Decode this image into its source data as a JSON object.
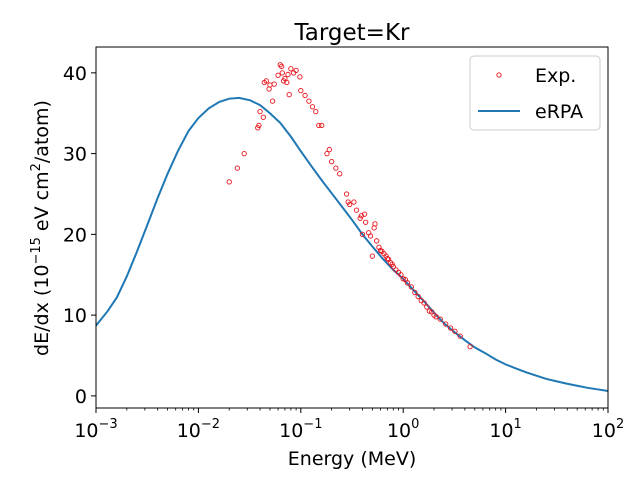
{
  "chart_data": {
    "type": "scatter",
    "title": "Target=Kr",
    "xlabel": "Energy (MeV)",
    "ylabel": {
      "prefix": "dE/dx (10",
      "exp1": "−15",
      "mid": " eV cm",
      "exp2": "2",
      "suffix": "/atom)"
    },
    "xscale": "log",
    "xlim": [
      0.001,
      100
    ],
    "ylim": [
      -1.5,
      43.2
    ],
    "x_ticks": [
      {
        "value": 0.001,
        "base": "10",
        "exp": "−3"
      },
      {
        "value": 0.01,
        "base": "10",
        "exp": "−2"
      },
      {
        "value": 0.1,
        "base": "10",
        "exp": "−1"
      },
      {
        "value": 1,
        "base": "10",
        "exp": "0"
      },
      {
        "value": 10,
        "base": "10",
        "exp": "1"
      },
      {
        "value": 100,
        "base": "10",
        "exp": "2"
      }
    ],
    "y_ticks": [
      0,
      10,
      20,
      30,
      40
    ],
    "legend_position": "top-right",
    "colors": {
      "exp": "#e8141c",
      "erpa": "#1f77b4"
    },
    "series": [
      {
        "name": "Exp.",
        "kind": "scatter",
        "points": [
          [
            0.02,
            26.5
          ],
          [
            0.024,
            28.2
          ],
          [
            0.028,
            30.0
          ],
          [
            0.038,
            33.2
          ],
          [
            0.039,
            33.5
          ],
          [
            0.04,
            35.2
          ],
          [
            0.043,
            34.5
          ],
          [
            0.044,
            38.8
          ],
          [
            0.046,
            39.0
          ],
          [
            0.049,
            38.0
          ],
          [
            0.05,
            38.5
          ],
          [
            0.053,
            36.5
          ],
          [
            0.055,
            38.6
          ],
          [
            0.06,
            39.7
          ],
          [
            0.063,
            41.0
          ],
          [
            0.065,
            40.8
          ],
          [
            0.066,
            40.0
          ],
          [
            0.068,
            39.0
          ],
          [
            0.07,
            39.3
          ],
          [
            0.073,
            38.8
          ],
          [
            0.075,
            39.8
          ],
          [
            0.077,
            37.3
          ],
          [
            0.08,
            40.5
          ],
          [
            0.085,
            40.0
          ],
          [
            0.09,
            40.3
          ],
          [
            0.098,
            39.5
          ],
          [
            0.1,
            37.8
          ],
          [
            0.11,
            37.2
          ],
          [
            0.12,
            36.5
          ],
          [
            0.13,
            35.8
          ],
          [
            0.14,
            35.2
          ],
          [
            0.15,
            33.5
          ],
          [
            0.16,
            33.5
          ],
          [
            0.18,
            30.0
          ],
          [
            0.19,
            30.5
          ],
          [
            0.2,
            29.0
          ],
          [
            0.22,
            28.2
          ],
          [
            0.24,
            27.5
          ],
          [
            0.28,
            25.0
          ],
          [
            0.29,
            24.0
          ],
          [
            0.3,
            23.7
          ],
          [
            0.33,
            24.0
          ],
          [
            0.35,
            23.0
          ],
          [
            0.38,
            22.0
          ],
          [
            0.39,
            22.3
          ],
          [
            0.4,
            20.0
          ],
          [
            0.42,
            22.5
          ],
          [
            0.43,
            21.5
          ],
          [
            0.46,
            20.2
          ],
          [
            0.48,
            19.8
          ],
          [
            0.5,
            17.3
          ],
          [
            0.52,
            20.8
          ],
          [
            0.53,
            21.3
          ],
          [
            0.55,
            19.2
          ],
          [
            0.58,
            18.4
          ],
          [
            0.6,
            18.0
          ],
          [
            0.62,
            17.9
          ],
          [
            0.65,
            17.6
          ],
          [
            0.68,
            17.3
          ],
          [
            0.7,
            17.0
          ],
          [
            0.72,
            16.9
          ],
          [
            0.75,
            16.5
          ],
          [
            0.78,
            16.3
          ],
          [
            0.8,
            16.0
          ],
          [
            0.85,
            15.6
          ],
          [
            0.9,
            15.3
          ],
          [
            0.95,
            15.0
          ],
          [
            1.0,
            14.5
          ],
          [
            1.05,
            14.4
          ],
          [
            1.1,
            14.0
          ],
          [
            1.2,
            13.5
          ],
          [
            1.3,
            12.8
          ],
          [
            1.4,
            12.3
          ],
          [
            1.5,
            11.8
          ],
          [
            1.6,
            11.5
          ],
          [
            1.7,
            11.0
          ],
          [
            1.8,
            10.5
          ],
          [
            1.9,
            10.4
          ],
          [
            2.0,
            10.0
          ],
          [
            2.1,
            9.8
          ],
          [
            2.3,
            9.5
          ],
          [
            2.6,
            8.9
          ],
          [
            2.9,
            8.4
          ],
          [
            3.2,
            8.0
          ],
          [
            3.6,
            7.4
          ],
          [
            4.5,
            6.1
          ]
        ]
      },
      {
        "name": "eRPA",
        "kind": "line",
        "points": [
          [
            0.001,
            8.7
          ],
          [
            0.0013,
            10.5
          ],
          [
            0.0016,
            12.2
          ],
          [
            0.002,
            14.8
          ],
          [
            0.0025,
            17.8
          ],
          [
            0.0032,
            21.3
          ],
          [
            0.004,
            24.5
          ],
          [
            0.005,
            27.5
          ],
          [
            0.0063,
            30.3
          ],
          [
            0.008,
            32.8
          ],
          [
            0.01,
            34.4
          ],
          [
            0.0126,
            35.6
          ],
          [
            0.016,
            36.4
          ],
          [
            0.02,
            36.8
          ],
          [
            0.025,
            36.9
          ],
          [
            0.032,
            36.6
          ],
          [
            0.04,
            36.0
          ],
          [
            0.05,
            35.0
          ],
          [
            0.063,
            33.8
          ],
          [
            0.08,
            32.1
          ],
          [
            0.1,
            30.3
          ],
          [
            0.126,
            28.5
          ],
          [
            0.16,
            26.7
          ],
          [
            0.2,
            25.1
          ],
          [
            0.25,
            23.5
          ],
          [
            0.316,
            21.8
          ],
          [
            0.4,
            20.0
          ],
          [
            0.5,
            18.5
          ],
          [
            0.63,
            17.0
          ],
          [
            0.8,
            15.6
          ],
          [
            1.0,
            14.5
          ],
          [
            1.26,
            13.1
          ],
          [
            1.6,
            11.7
          ],
          [
            2.0,
            10.3
          ],
          [
            2.5,
            9.0
          ],
          [
            3.16,
            7.9
          ],
          [
            4.0,
            6.9
          ],
          [
            5.0,
            6.0
          ],
          [
            6.3,
            5.3
          ],
          [
            8.0,
            4.5
          ],
          [
            10.0,
            3.9
          ],
          [
            12.6,
            3.4
          ],
          [
            16.0,
            2.9
          ],
          [
            20.0,
            2.5
          ],
          [
            25.0,
            2.1
          ],
          [
            31.6,
            1.8
          ],
          [
            40.0,
            1.5
          ],
          [
            50.0,
            1.25
          ],
          [
            63.0,
            1.0
          ],
          [
            80.0,
            0.8
          ],
          [
            100.0,
            0.6
          ]
        ]
      }
    ]
  }
}
